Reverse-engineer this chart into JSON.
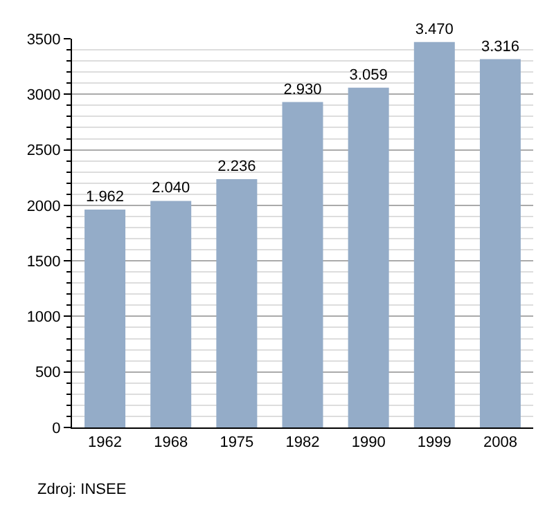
{
  "chart_data": {
    "type": "bar",
    "categories": [
      "1962",
      "1968",
      "1975",
      "1982",
      "1990",
      "1999",
      "2008"
    ],
    "values": [
      1962,
      2040,
      2236,
      2930,
      3059,
      3470,
      3316
    ],
    "value_labels": [
      "1.962",
      "2.040",
      "2.236",
      "2.930",
      "3.059",
      "3.470",
      "3.316"
    ],
    "color": "#94acc8",
    "ylim": [
      0,
      3500
    ],
    "yticks": [
      0,
      500,
      1000,
      1500,
      2000,
      2500,
      3000,
      3500
    ],
    "grid": true,
    "annotations": [
      "Zdroj: INSEE"
    ]
  }
}
